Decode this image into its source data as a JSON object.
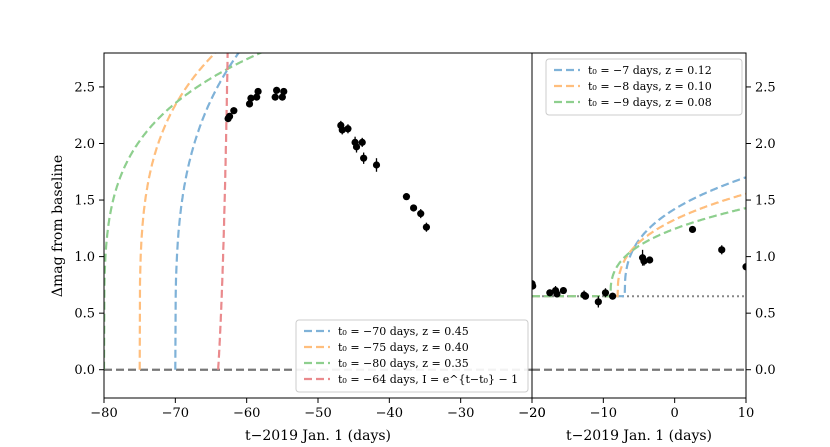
{
  "chart_data": [
    {
      "type": "scatter",
      "panel": "left",
      "xlabel": "t−2019 Jan. 1 (days)",
      "ylabel": "Δmag from baseline",
      "xlim": [
        -80,
        -20
      ],
      "ylim": [
        -0.25,
        2.8
      ],
      "xticks": [
        -80,
        -70,
        -60,
        -50,
        -40,
        -30,
        -20
      ],
      "xtick_labels": [
        "−80",
        "−70",
        "−60",
        "−50",
        "−40",
        "−30",
        "−20"
      ],
      "yticks": [
        0.0,
        0.5,
        1.0,
        1.5,
        2.0,
        2.5
      ],
      "ytick_labels": [
        "0.0",
        "0.5",
        "1.0",
        "1.5",
        "2.0",
        "2.5"
      ],
      "legend_position": "lower-right",
      "baseline": 0.0,
      "points": [
        {
          "x": -62.6,
          "y": 2.22,
          "err": 0.03
        },
        {
          "x": -62.4,
          "y": 2.24,
          "err": 0.03
        },
        {
          "x": -61.8,
          "y": 2.29,
          "err": 0.03
        },
        {
          "x": -59.6,
          "y": 2.35,
          "err": 0.03
        },
        {
          "x": -59.4,
          "y": 2.4,
          "err": 0.03
        },
        {
          "x": -58.6,
          "y": 2.41,
          "err": 0.03
        },
        {
          "x": -58.4,
          "y": 2.46,
          "err": 0.03
        },
        {
          "x": -56.0,
          "y": 2.41,
          "err": 0.03
        },
        {
          "x": -55.8,
          "y": 2.47,
          "err": 0.03
        },
        {
          "x": -55.0,
          "y": 2.41,
          "err": 0.03
        },
        {
          "x": -54.8,
          "y": 2.46,
          "err": 0.03
        },
        {
          "x": -46.8,
          "y": 2.16,
          "err": 0.04
        },
        {
          "x": -46.6,
          "y": 2.12,
          "err": 0.04
        },
        {
          "x": -45.8,
          "y": 2.13,
          "err": 0.04
        },
        {
          "x": -44.8,
          "y": 2.01,
          "err": 0.05
        },
        {
          "x": -44.6,
          "y": 1.97,
          "err": 0.05
        },
        {
          "x": -43.8,
          "y": 2.01,
          "err": 0.04
        },
        {
          "x": -43.6,
          "y": 1.87,
          "err": 0.05
        },
        {
          "x": -41.8,
          "y": 1.81,
          "err": 0.06
        },
        {
          "x": -37.6,
          "y": 1.53,
          "err": 0.02
        },
        {
          "x": -36.6,
          "y": 1.43,
          "err": 0.03
        },
        {
          "x": -35.6,
          "y": 1.38,
          "err": 0.04
        },
        {
          "x": -34.8,
          "y": 1.26,
          "err": 0.04
        }
      ],
      "series": [
        {
          "name": "t₀ = −70 days, z = 0.45",
          "color": "#7fb2d8",
          "t0": -70,
          "z": 0.45,
          "model": "power",
          "A": 1.52,
          "n": 0.28
        },
        {
          "name": "t₀ = −75 days, z = 0.40",
          "color": "#ffbe7d",
          "t0": -75,
          "z": 0.4,
          "model": "power",
          "A": 1.59,
          "n": 0.24
        },
        {
          "name": "t₀ = −80 days, z = 0.35",
          "color": "#8ecf8e",
          "t0": -80,
          "z": 0.35,
          "model": "power",
          "A": 1.42,
          "n": 0.22
        },
        {
          "name": "t₀ = −64 days, I = e^{t−t₀} − 1",
          "color": "#ea8a8d",
          "t0": -64,
          "model": "exp"
        }
      ]
    },
    {
      "type": "scatter",
      "panel": "right",
      "xlabel": "t−2019 Jan. 1 (days)",
      "xlim": [
        -20,
        10
      ],
      "ylim": [
        -0.25,
        2.8
      ],
      "xticks": [
        -20,
        -10,
        0,
        10
      ],
      "xtick_labels": [
        "−20",
        "−10",
        "0",
        "10"
      ],
      "yticks": [
        0.0,
        0.5,
        1.0,
        1.5,
        2.0,
        2.5
      ],
      "ytick_labels": [
        "0.0",
        "0.5",
        "1.0",
        "1.5",
        "2.0",
        "2.5"
      ],
      "legend_position": "upper-right",
      "baseline": 0.0,
      "plateau": 0.65,
      "points": [
        {
          "x": -20.0,
          "y": 0.76,
          "err": 0.03
        },
        {
          "x": -19.9,
          "y": 0.74,
          "err": 0.03
        },
        {
          "x": -17.5,
          "y": 0.68,
          "err": 0.03
        },
        {
          "x": -16.7,
          "y": 0.7,
          "err": 0.04
        },
        {
          "x": -16.5,
          "y": 0.67,
          "err": 0.03
        },
        {
          "x": -15.6,
          "y": 0.7,
          "err": 0.03
        },
        {
          "x": -12.7,
          "y": 0.66,
          "err": 0.04
        },
        {
          "x": -12.5,
          "y": 0.65,
          "err": 0.03
        },
        {
          "x": -10.7,
          "y": 0.6,
          "err": 0.05
        },
        {
          "x": -9.7,
          "y": 0.68,
          "err": 0.04
        },
        {
          "x": -8.7,
          "y": 0.65,
          "err": 0.03
        },
        {
          "x": -4.5,
          "y": 0.99,
          "err": 0.07
        },
        {
          "x": -4.3,
          "y": 0.96,
          "err": 0.04
        },
        {
          "x": -3.5,
          "y": 0.97,
          "err": 0.03
        },
        {
          "x": 2.5,
          "y": 1.24,
          "err": 0.02
        },
        {
          "x": 6.6,
          "y": 1.06,
          "err": 0.04
        },
        {
          "x": 10.0,
          "y": 0.91,
          "err": 0.03
        }
      ],
      "series": [
        {
          "name": "t₀ = −7 days, z = 0.12",
          "color": "#7fb2d8",
          "t0": -7,
          "z": 0.12,
          "model": "power",
          "A": 0.39,
          "n": 0.35
        },
        {
          "name": "t₀ = −8 days, z = 0.10",
          "color": "#ffbe7d",
          "t0": -8,
          "z": 0.1,
          "model": "power",
          "A": 0.32,
          "n": 0.36
        },
        {
          "name": "t₀ = −9 days, z = 0.08",
          "color": "#8ecf8e",
          "t0": -9,
          "z": 0.08,
          "model": "power",
          "A": 0.27,
          "n": 0.36
        }
      ]
    }
  ]
}
